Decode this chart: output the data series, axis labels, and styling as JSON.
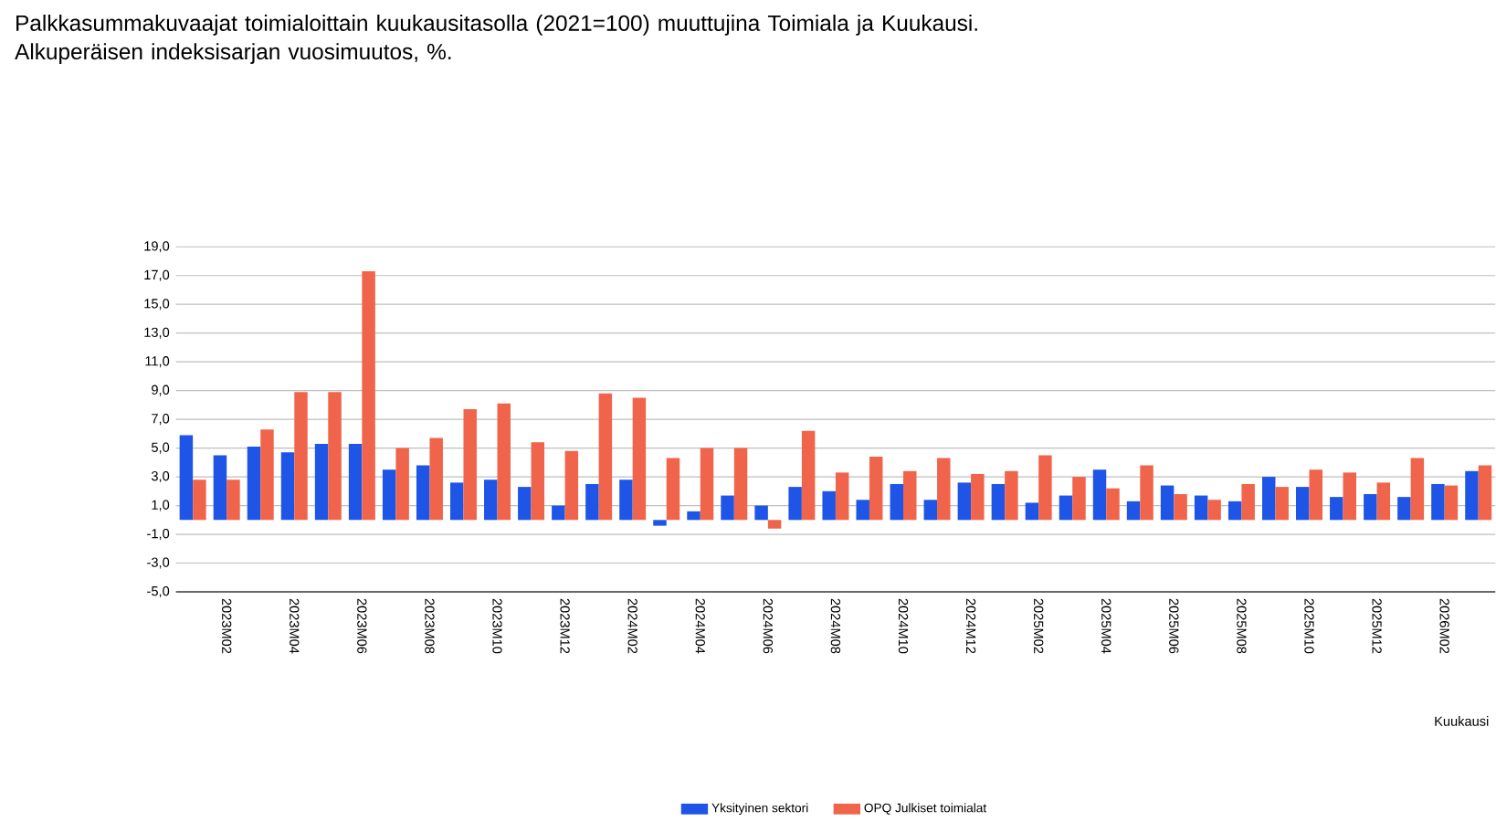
{
  "chart_data": {
    "type": "bar",
    "title": "Palkkasummakuvaajat toimialoittain kuukausitasolla (2021=100) muuttujina Toimiala ja Kuukausi.\nAlkuperäisen indeksisarjan vuosimuutos, %.",
    "xlabel": "Kuukausi",
    "categories": [
      null,
      "2023M02",
      null,
      "2023M04",
      null,
      "2023M06",
      null,
      "2023M08",
      null,
      "2023M10",
      null,
      "2023M12",
      null,
      "2024M02",
      null,
      "2024M04",
      null,
      "2024M06",
      null,
      "2024M08",
      null,
      "2024M10",
      null,
      "2024M12",
      null,
      "2025M02",
      null,
      "2025M04",
      null,
      "2025M06",
      null,
      "2025M08",
      null,
      "2025M10",
      null,
      "2025M12",
      null,
      "2026M02",
      null
    ],
    "series": [
      {
        "name": "Yksityinen sektori",
        "color": "#1f55e6",
        "values": [
          5.9,
          4.5,
          5.1,
          4.7,
          5.3,
          5.3,
          3.5,
          3.8,
          2.6,
          2.8,
          2.3,
          1.0,
          2.5,
          2.8,
          -0.4,
          0.6,
          1.7,
          1.0,
          2.3,
          2.0,
          1.4,
          2.5,
          1.4,
          2.6,
          2.5,
          1.2,
          1.7,
          3.5,
          1.3,
          2.4,
          1.7,
          1.3,
          3.0,
          2.3,
          1.6,
          1.8,
          1.6,
          2.5,
          3.4
        ]
      },
      {
        "name": "OPQ Julkiset toimialat",
        "color": "#f0644c",
        "values": [
          2.8,
          2.8,
          6.3,
          8.9,
          8.9,
          17.3,
          5.0,
          5.7,
          7.7,
          8.1,
          5.4,
          4.8,
          8.8,
          8.5,
          4.3,
          5.0,
          5.0,
          -0.6,
          6.2,
          3.3,
          4.4,
          3.4,
          4.3,
          3.2,
          3.4,
          4.5,
          3.0,
          2.2,
          3.8,
          1.8,
          1.4,
          2.5,
          2.3,
          3.5,
          3.3,
          2.6,
          4.3,
          2.4,
          3.8
        ]
      }
    ],
    "ylim": [
      -5,
      19
    ],
    "yticks": [
      {
        "value": -5,
        "label": "-5,0"
      },
      {
        "value": -3,
        "label": "-3,0"
      },
      {
        "value": -1,
        "label": "-1,0"
      },
      {
        "value": 1,
        "label": "1,0"
      },
      {
        "value": 3,
        "label": "3,0"
      },
      {
        "value": 5,
        "label": "5,0"
      },
      {
        "value": 7,
        "label": "7,0"
      },
      {
        "value": 9,
        "label": "9,0"
      },
      {
        "value": 11,
        "label": "11,0"
      },
      {
        "value": 13,
        "label": "13,0"
      },
      {
        "value": 15,
        "label": "15,0"
      },
      {
        "value": 17,
        "label": "17,0"
      },
      {
        "value": 19,
        "label": "19,0"
      }
    ],
    "grid": "y",
    "legend": "bottom"
  }
}
